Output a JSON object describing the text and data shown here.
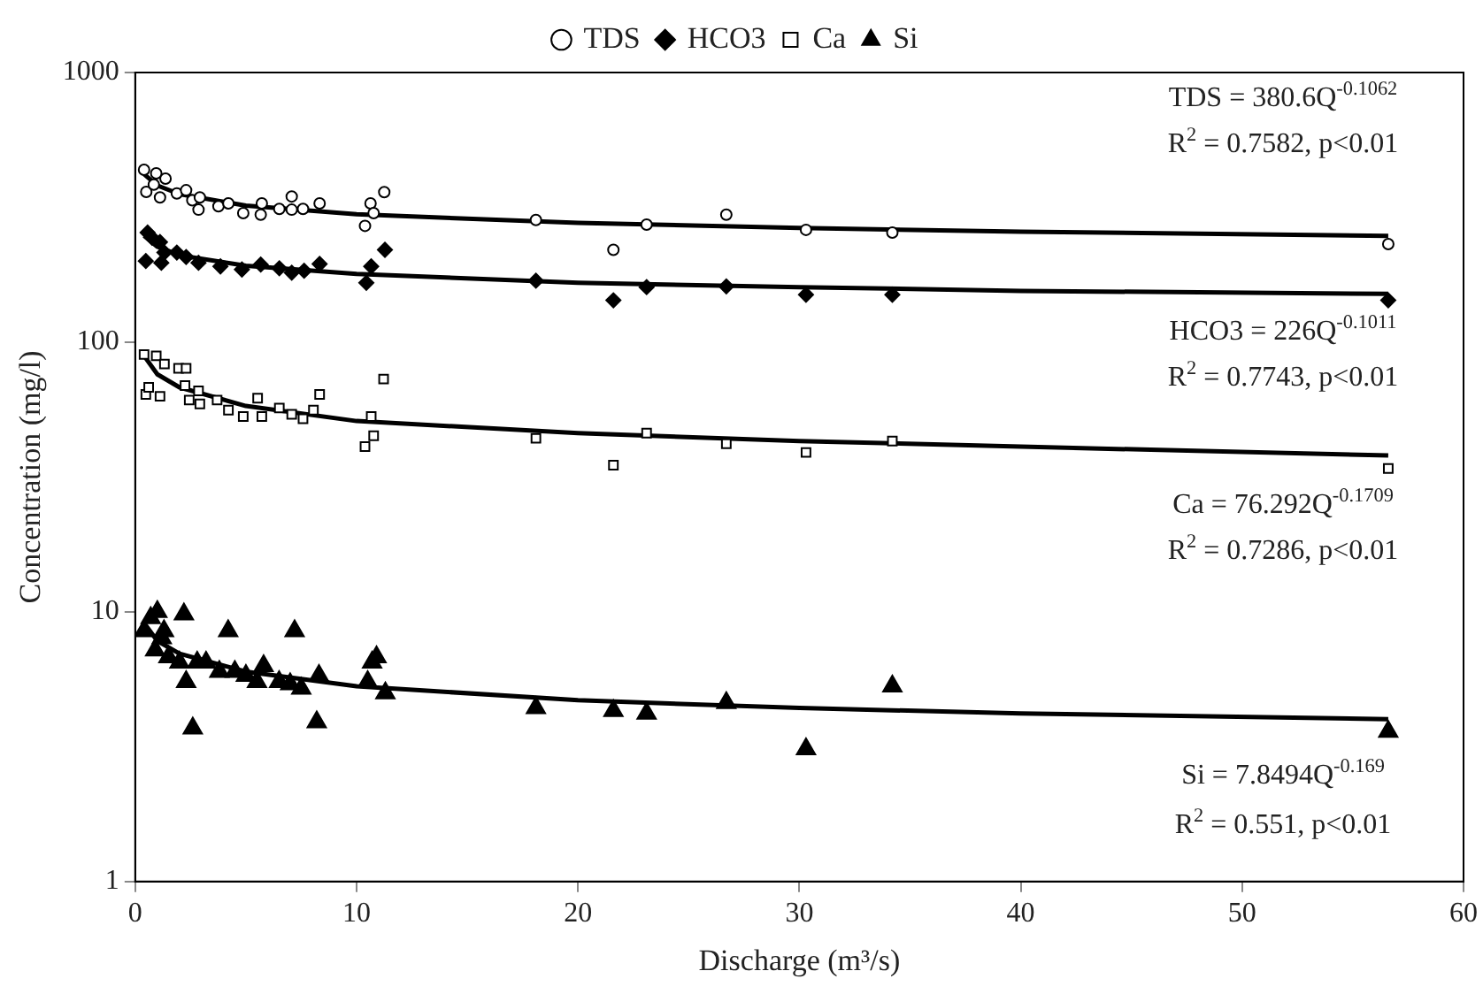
{
  "chart_data": {
    "type": "scatter",
    "xlabel": "Discharge (m³/s)",
    "ylabel": "Concentration (mg/l)",
    "xlim": [
      0,
      60
    ],
    "xticks": [
      0,
      10,
      20,
      30,
      40,
      50,
      60
    ],
    "ylim": [
      1,
      1000
    ],
    "yticks": [
      1,
      10,
      100,
      1000
    ],
    "log": "y",
    "grid": false,
    "legend": "top",
    "annotations": [
      "TDS = 380.6Q$^{-0.1062}$",
      "R$^{2}$ = 0.7582, p<0.01",
      "HCO3 = 226Q$^{-0.1011}$",
      "R$^{2}$ = 0.7743, p<0.01",
      "Ca = 76.292Q$^{-0.1709}$",
      "R$^{2}$ = 0.7286, p<0.01",
      "Si = 7.8494Q$^{-0.169}$",
      "R$^{2}$ = 0.551, p<0.01"
    ],
    "series": [
      {
        "name": "TDS",
        "color": "#000000",
        "marker": "circle",
        "x": [
          0.4,
          0.5,
          0.95,
          1.37,
          1.12,
          0.84,
          1.88,
          2.3,
          2.58,
          2.92,
          2.86,
          3.76,
          4.21,
          4.88,
          5.72,
          5.67,
          6.51,
          7.07,
          7.07,
          7.58,
          8.33,
          10.38,
          10.63,
          10.77,
          11.25,
          18.1,
          21.6,
          23.1,
          26.7,
          30.3,
          34.2,
          56.6
        ],
        "values": [
          436,
          361,
          423,
          404,
          344,
          384,
          356,
          366,
          336,
          344,
          310,
          319,
          327,
          301,
          327,
          297,
          312,
          347,
          310,
          312,
          327,
          270,
          327,
          301,
          360,
          284,
          220,
          273,
          297,
          261,
          255,
          231
        ]
      },
      {
        "name": "HCO3",
        "color": "#000000",
        "marker": "diamond",
        "x": [
          0.56,
          0.76,
          0.48,
          1.12,
          1.32,
          1.18,
          1.88,
          2.3,
          2.86,
          3.85,
          4.82,
          5.67,
          6.51,
          7.07,
          7.63,
          8.33,
          10.44,
          10.66,
          11.28,
          18.1,
          21.6,
          23.1,
          26.7,
          30.3,
          34.2,
          56.6
        ],
        "values": [
          255,
          244,
          200,
          235,
          215,
          197,
          215,
          207,
          197,
          191,
          186,
          194,
          188,
          181,
          184,
          195,
          166,
          191,
          220,
          169,
          143,
          160,
          161,
          150,
          150,
          143
        ]
      },
      {
        "name": "Ca",
        "color": "#000000",
        "marker": "square",
        "x": [
          0.4,
          0.95,
          1.32,
          0.48,
          0.61,
          1.12,
          1.96,
          2.3,
          2.25,
          2.44,
          2.86,
          2.92,
          3.7,
          4.21,
          4.88,
          5.53,
          5.72,
          6.51,
          7.07,
          7.58,
          8.05,
          8.33,
          10.38,
          10.66,
          10.77,
          11.22,
          18.1,
          21.6,
          23.1,
          26.7,
          30.3,
          34.2,
          56.6
        ],
        "values": [
          90,
          89,
          83,
          64,
          68,
          63,
          80,
          80,
          69,
          61,
          66,
          59,
          61,
          56,
          53,
          62,
          53,
          57,
          54,
          52,
          56,
          64,
          41,
          53,
          45,
          73,
          44,
          35,
          46,
          42,
          39,
          43,
          34
        ]
      },
      {
        "name": "Si",
        "color": "#000000",
        "marker": "triangle",
        "x": [
          0.4,
          0.7,
          1,
          0.9,
          1.2,
          1.5,
          1.3,
          2,
          2.2,
          2.3,
          2.6,
          2.8,
          3.2,
          3.8,
          4.2,
          4.5,
          5,
          5.5,
          5.8,
          6.5,
          7,
          7.2,
          7.5,
          8.2,
          8.3,
          10.5,
          10.7,
          10.9,
          11.3,
          18.1,
          21.6,
          23.1,
          26.7,
          30.3,
          34.2,
          56.6
        ],
        "values": [
          8.5,
          9.5,
          10,
          7.2,
          8,
          6.8,
          8.5,
          6.5,
          9.8,
          5.5,
          3.7,
          6.5,
          6.5,
          6,
          8.5,
          6,
          5.8,
          5.5,
          6.3,
          5.5,
          5.4,
          8.5,
          5.2,
          3.9,
          5.8,
          5.5,
          6.5,
          6.8,
          5,
          4.4,
          4.3,
          4.2,
          4.6,
          3.1,
          5.3,
          3.6
        ]
      },
      {
        "type": "line",
        "color": "#000000",
        "marker": "none",
        "x": [
          0.4,
          1,
          2,
          5,
          10,
          20,
          30,
          40,
          56.6
        ],
        "values": [
          420,
          381,
          354,
          321,
          298,
          277,
          265,
          257,
          248
        ]
      },
      {
        "type": "line",
        "color": "#000000",
        "marker": "none",
        "x": [
          0.4,
          1,
          2,
          5,
          10,
          20,
          30,
          40,
          56.6
        ],
        "values": [
          248,
          226,
          210,
          192,
          179,
          166,
          160,
          155,
          151
        ]
      },
      {
        "type": "line",
        "color": "#000000",
        "marker": "none",
        "x": [
          0.4,
          1,
          2,
          5,
          10,
          20,
          30,
          40,
          56.6
        ],
        "values": [
          89,
          76,
          68,
          58,
          51,
          46,
          43,
          41,
          38
        ]
      },
      {
        "type": "line",
        "color": "#000000",
        "marker": "none",
        "x": [
          0.4,
          1,
          2,
          5,
          10,
          20,
          30,
          40,
          56.6
        ],
        "values": [
          9.1,
          7.8,
          7.0,
          6.0,
          5.3,
          4.7,
          4.4,
          4.2,
          4.0
        ]
      }
    ]
  }
}
